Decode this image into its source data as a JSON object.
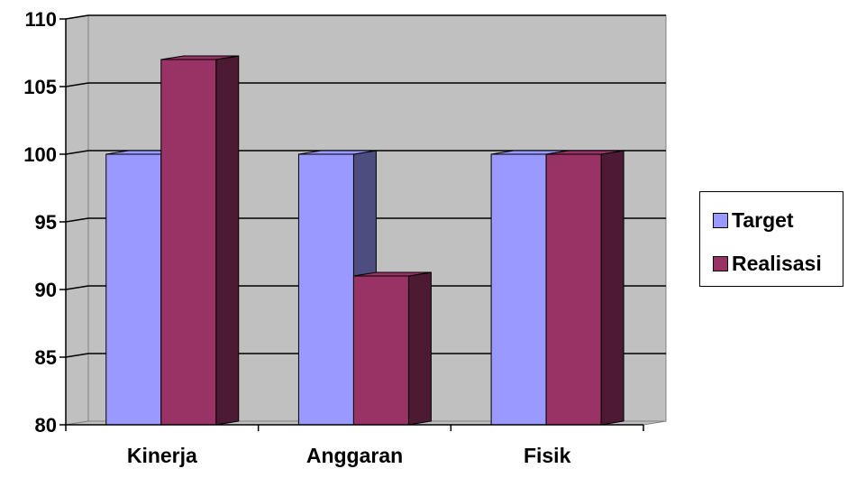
{
  "chart_data": {
    "type": "bar",
    "categories": [
      "Kinerja",
      "Anggaran",
      "Fisik"
    ],
    "series": [
      {
        "name": "Target",
        "values": [
          100,
          100,
          100
        ],
        "color": "#9999ff",
        "side_color": "#4d4d80"
      },
      {
        "name": "Realisasi",
        "values": [
          107,
          91,
          100
        ],
        "color": "#993366",
        "side_color": "#4d1a33"
      }
    ],
    "ylim": [
      80,
      110
    ],
    "yticks": [
      80,
      85,
      90,
      95,
      100,
      105,
      110
    ],
    "grid": true,
    "style": "3d-clustered",
    "wall_color": "#c0c0c0",
    "legend_position": "right"
  }
}
